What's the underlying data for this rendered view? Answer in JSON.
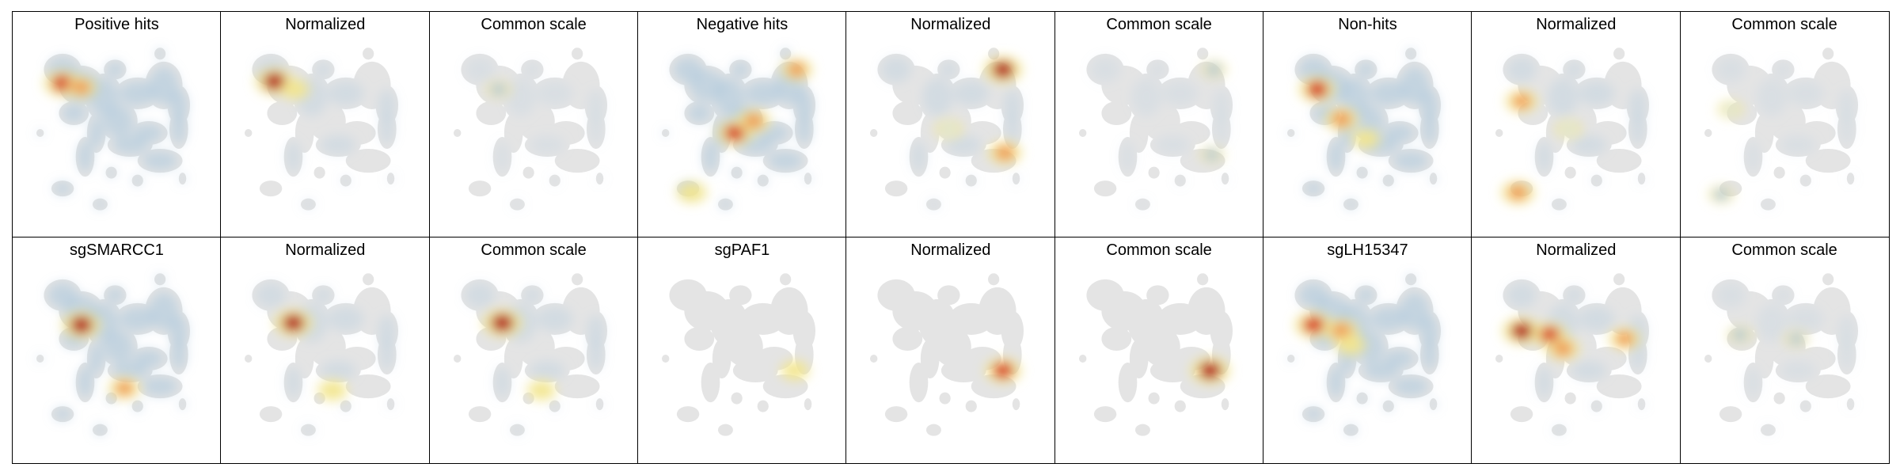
{
  "chart_data": {
    "type": "heatmap",
    "layout": {
      "rows": 2,
      "cols": 9
    },
    "colors": {
      "background_cells": "#e4e4e4",
      "low": "#a9c6dd",
      "mid_low": "#dfe8d5",
      "mid": "#f2e58e",
      "mid_high": "#f09a54",
      "high": "#d7301f",
      "max": "#b40f17"
    },
    "panels": [
      {
        "title": "Positive hits",
        "density": "broad",
        "hotspots": [
          [
            0.2,
            0.27,
            0.9
          ],
          [
            0.3,
            0.29,
            0.6
          ]
        ]
      },
      {
        "title": "Normalized",
        "density": "sparse",
        "hotspots": [
          [
            0.22,
            0.26,
            0.95
          ],
          [
            0.33,
            0.3,
            0.5
          ]
        ]
      },
      {
        "title": "Common scale",
        "density": "faint",
        "hotspots": [
          [
            0.3,
            0.3,
            0.25
          ]
        ]
      },
      {
        "title": "Negative hits",
        "density": "broad",
        "hotspots": [
          [
            0.45,
            0.52,
            0.85
          ],
          [
            0.55,
            0.46,
            0.7
          ],
          [
            0.78,
            0.2,
            0.6
          ],
          [
            0.22,
            0.82,
            0.55
          ]
        ]
      },
      {
        "title": "Normalized",
        "density": "sparse",
        "hotspots": [
          [
            0.77,
            0.2,
            0.95
          ],
          [
            0.78,
            0.62,
            0.7
          ],
          [
            0.48,
            0.5,
            0.4
          ]
        ]
      },
      {
        "title": "Common scale",
        "density": "faint",
        "hotspots": [
          [
            0.78,
            0.2,
            0.25
          ],
          [
            0.77,
            0.63,
            0.2
          ]
        ]
      },
      {
        "title": "Non-hits",
        "density": "broad",
        "hotspots": [
          [
            0.22,
            0.3,
            0.85
          ],
          [
            0.35,
            0.45,
            0.7
          ],
          [
            0.48,
            0.55,
            0.45
          ]
        ]
      },
      {
        "title": "Normalized",
        "density": "sparse",
        "hotspots": [
          [
            0.2,
            0.36,
            0.65
          ],
          [
            0.18,
            0.82,
            0.7
          ],
          [
            0.45,
            0.5,
            0.35
          ]
        ]
      },
      {
        "title": "Common scale",
        "density": "faint",
        "hotspots": [
          [
            0.2,
            0.4,
            0.3
          ],
          [
            0.15,
            0.83,
            0.25
          ]
        ]
      },
      {
        "title": "sgSMARCC1",
        "density": "broad",
        "hotspots": [
          [
            0.3,
            0.35,
            0.95
          ],
          [
            0.53,
            0.67,
            0.6
          ]
        ]
      },
      {
        "title": "Normalized",
        "density": "sparse",
        "hotspots": [
          [
            0.32,
            0.34,
            0.95
          ],
          [
            0.53,
            0.68,
            0.55
          ]
        ]
      },
      {
        "title": "Common scale",
        "density": "sparse",
        "hotspots": [
          [
            0.32,
            0.34,
            1.0
          ],
          [
            0.53,
            0.68,
            0.5
          ]
        ]
      },
      {
        "title": "sgPAF1",
        "density": "none",
        "hotspots": [
          [
            0.77,
            0.58,
            0.5
          ]
        ]
      },
      {
        "title": "Normalized",
        "density": "none",
        "hotspots": [
          [
            0.77,
            0.58,
            0.85
          ]
        ]
      },
      {
        "title": "Common scale",
        "density": "none",
        "hotspots": [
          [
            0.76,
            0.58,
            1.0
          ]
        ]
      },
      {
        "title": "sgLH15347",
        "density": "broad",
        "hotspots": [
          [
            0.2,
            0.35,
            0.9
          ],
          [
            0.35,
            0.38,
            0.75
          ],
          [
            0.4,
            0.45,
            0.55
          ]
        ]
      },
      {
        "title": "Normalized",
        "density": "sparse",
        "hotspots": [
          [
            0.2,
            0.38,
            0.95
          ],
          [
            0.35,
            0.4,
            0.8
          ],
          [
            0.42,
            0.47,
            0.7
          ],
          [
            0.75,
            0.42,
            0.6
          ]
        ]
      },
      {
        "title": "Common scale",
        "density": "faint",
        "hotspots": [
          [
            0.25,
            0.4,
            0.25
          ],
          [
            0.55,
            0.42,
            0.2
          ]
        ]
      }
    ]
  }
}
